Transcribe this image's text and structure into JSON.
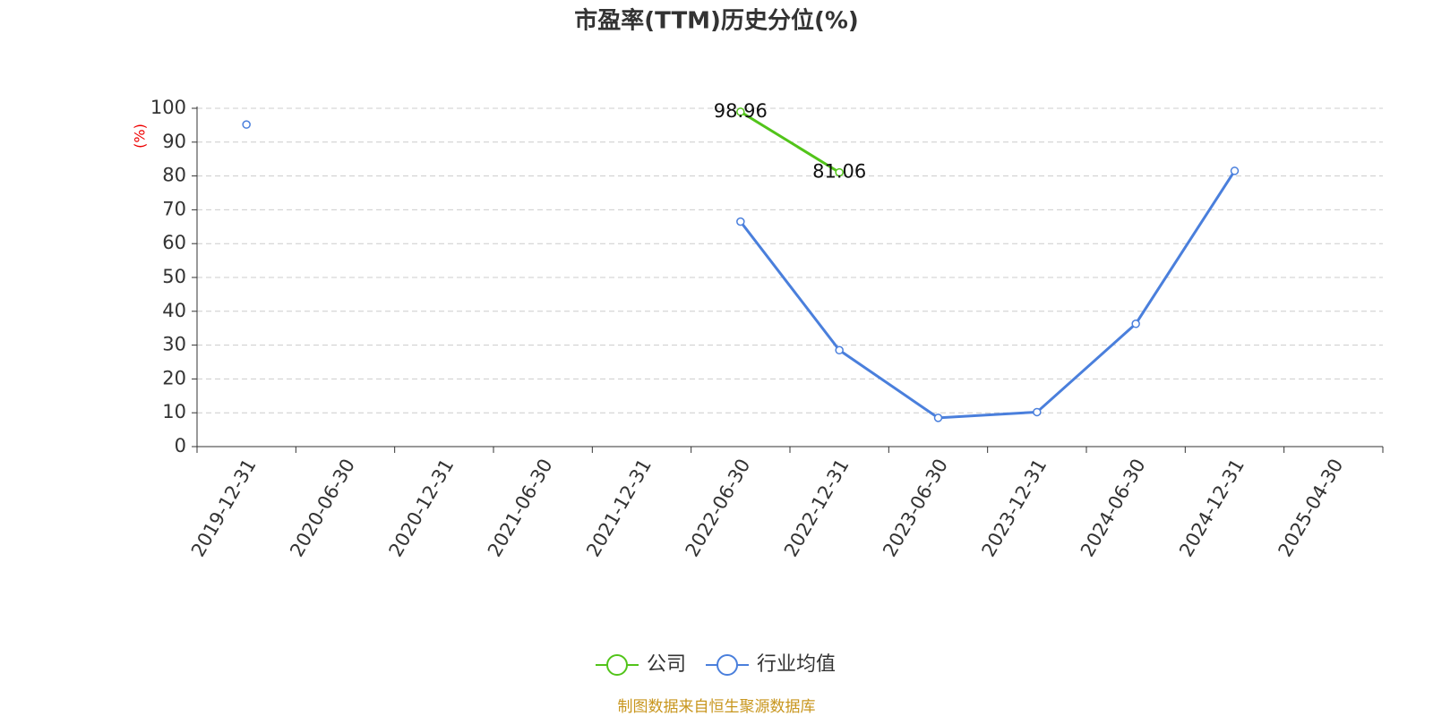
{
  "chart_data": {
    "type": "line",
    "title": "市盈率(TTM)历史分位(%)",
    "y_label": "(%)",
    "source": "制图数据来自恒生聚源数据库",
    "categories": [
      "2019-12-31",
      "2020-06-30",
      "2020-12-31",
      "2021-06-30",
      "2021-12-31",
      "2022-06-30",
      "2022-12-31",
      "2023-06-30",
      "2023-12-31",
      "2024-06-30",
      "2024-12-31",
      "2025-04-30"
    ],
    "series": [
      {
        "name": "公司",
        "color": "#52c41a",
        "values": [
          null,
          null,
          null,
          null,
          null,
          98.96,
          81.06,
          null,
          null,
          null,
          null,
          null
        ],
        "show_labels": true
      },
      {
        "name": "行业均值",
        "color": "#4a7fdc",
        "values": [
          95.2,
          null,
          null,
          null,
          null,
          66.5,
          28.5,
          8.5,
          10.2,
          36.3,
          81.5,
          null
        ],
        "show_labels": false
      }
    ],
    "ylim": [
      0,
      100
    ],
    "yticks": [
      0,
      10,
      20,
      30,
      40,
      50,
      60,
      70,
      80,
      90,
      100
    ],
    "grid": true
  }
}
